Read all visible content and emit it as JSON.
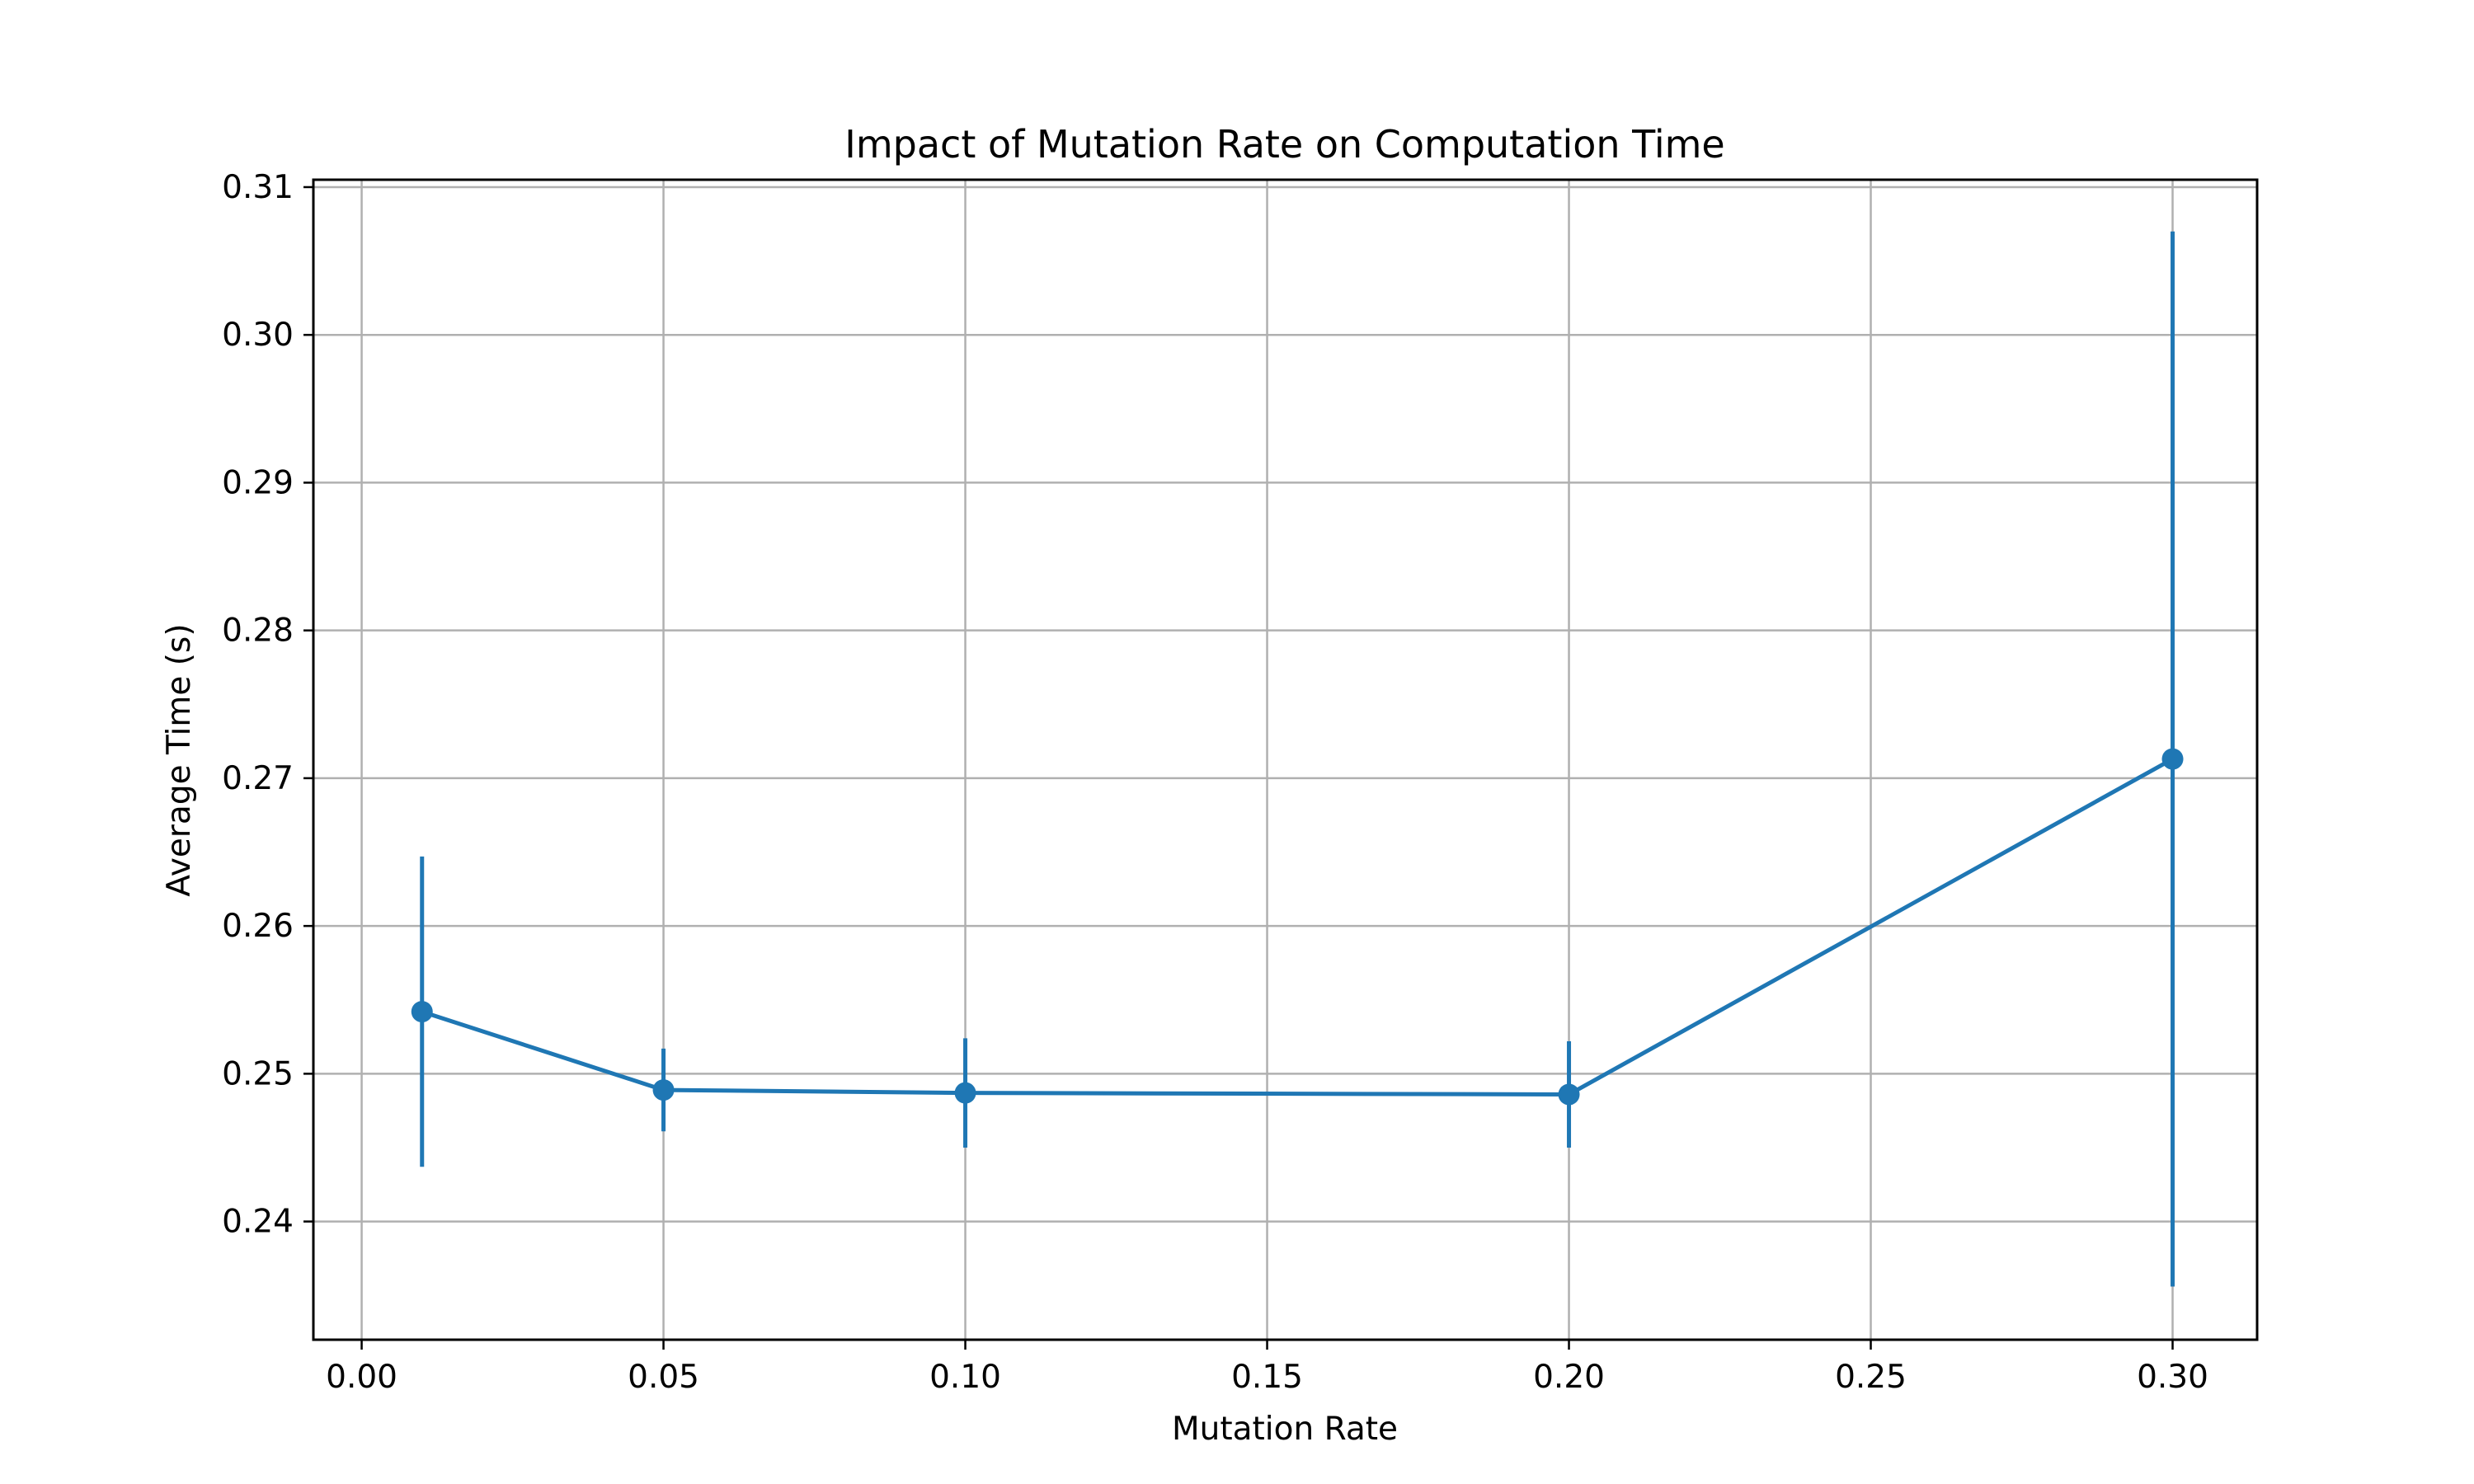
{
  "chart_data": {
    "type": "line",
    "title": "Impact of Mutation Rate on Computation Time",
    "xlabel": "Mutation Rate",
    "ylabel": "Average Time (s)",
    "xlim": [
      -0.008,
      0.314
    ],
    "ylim": [
      0.232,
      0.3105
    ],
    "x_ticks": [
      0.0,
      0.05,
      0.1,
      0.15,
      0.2,
      0.25,
      0.3
    ],
    "x_tick_labels": [
      "0.00",
      "0.05",
      "0.10",
      "0.15",
      "0.20",
      "0.25",
      "0.30"
    ],
    "y_ticks": [
      0.24,
      0.25,
      0.26,
      0.27,
      0.28,
      0.29,
      0.3,
      0.31
    ],
    "y_tick_labels": [
      "0.24",
      "0.25",
      "0.26",
      "0.27",
      "0.28",
      "0.29",
      "0.30",
      "0.31"
    ],
    "grid": true,
    "series": [
      {
        "color": "#1f77b4",
        "x": [
          0.01,
          0.05,
          0.1,
          0.2,
          0.3
        ],
        "y": [
          0.2542,
          0.2489,
          0.2487,
          0.2486,
          0.2713
        ],
        "error": [
          0.0105,
          0.0028,
          0.0037,
          0.0036,
          0.0357
        ]
      }
    ]
  }
}
